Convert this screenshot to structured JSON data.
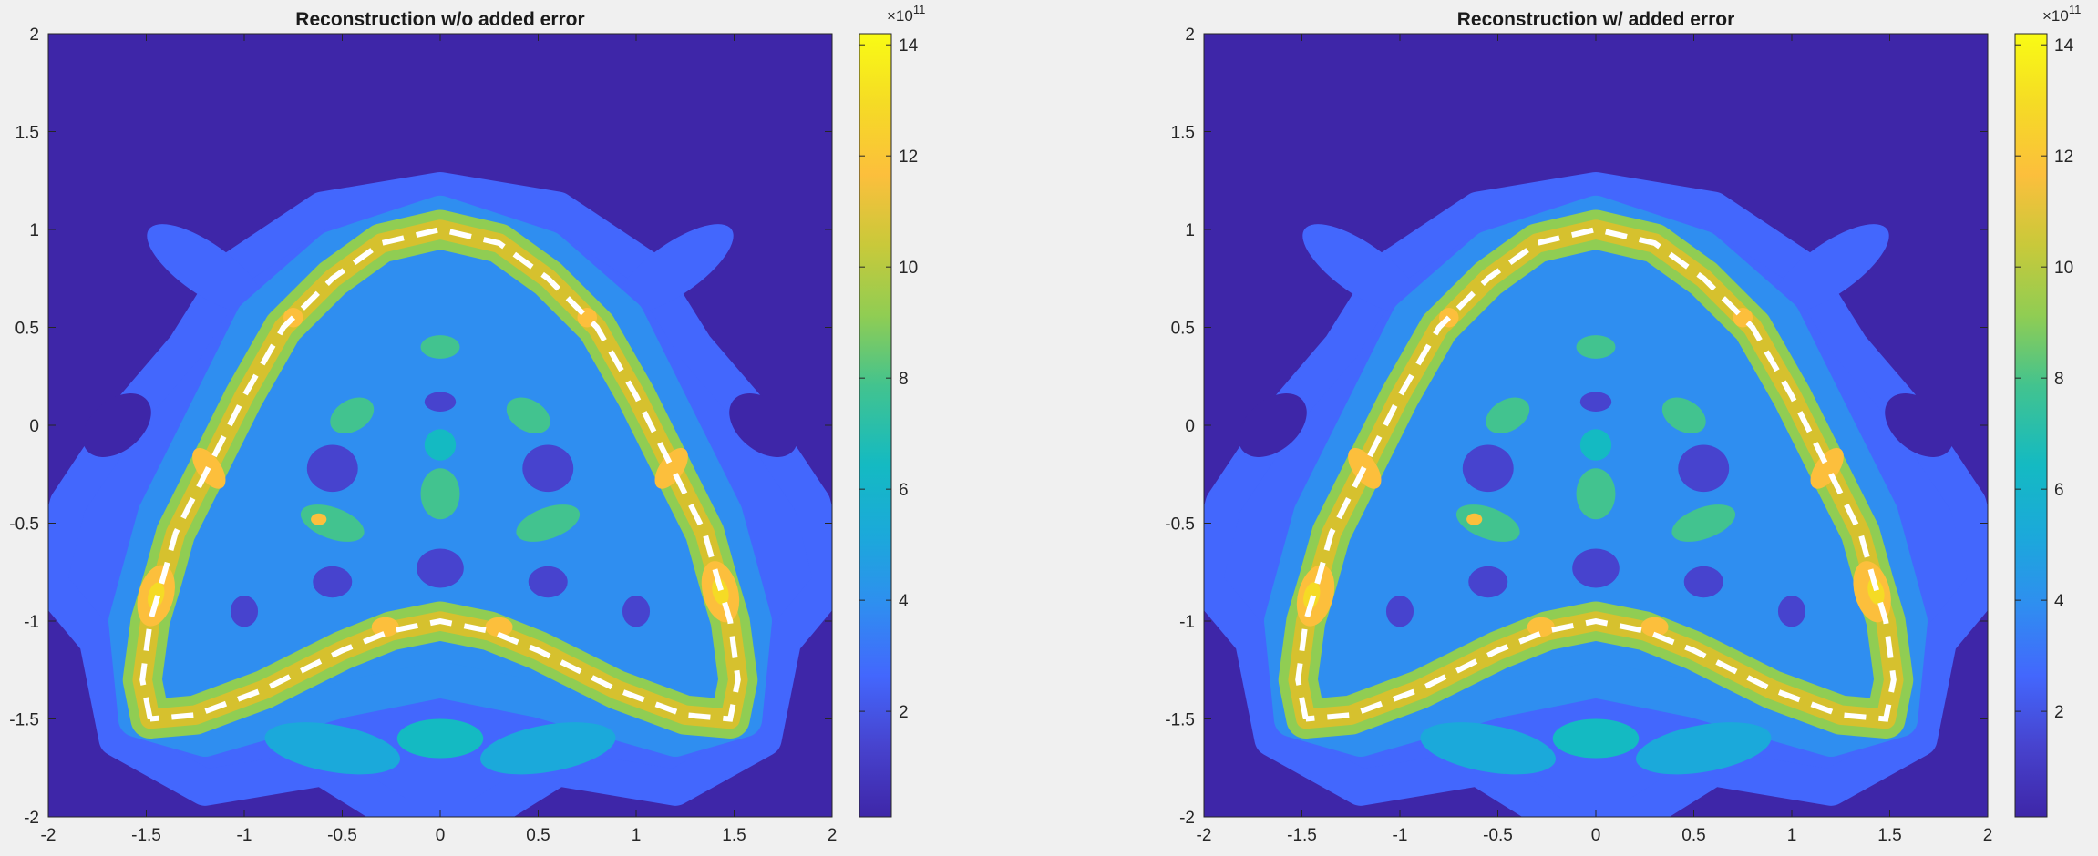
{
  "figure": {
    "background": "#f0f0f0",
    "colormap": "parula",
    "colormap_stops": [
      "#3e26a8",
      "#4743ce",
      "#4367fd",
      "#2f8ef0",
      "#1ba9da",
      "#14bac2",
      "#42c38f",
      "#90cd53",
      "#d6c12e",
      "#fcbf3c",
      "#f5db25",
      "#f9fb14"
    ],
    "curve_color": "#ffffff"
  },
  "chart_data": [
    {
      "type": "heatmap",
      "title": "Reconstruction w/o added error",
      "xlim": [
        -2,
        2
      ],
      "ylim": [
        -2,
        2
      ],
      "x_ticks": [
        -2,
        -1.5,
        -1,
        -0.5,
        0,
        0.5,
        1,
        1.5,
        2
      ],
      "y_ticks": [
        -2,
        -1.5,
        -1,
        -0.5,
        0,
        0.5,
        1,
        1.5,
        2
      ],
      "x_tick_labels": [
        "-2",
        "-1.5",
        "-1",
        "-0.5",
        "0",
        "0.5",
        "1",
        "1.5",
        "2"
      ],
      "y_tick_labels": [
        "-2",
        "-1.5",
        "-1",
        "-0.5",
        "0",
        "0.5",
        "1",
        "1.5",
        "2"
      ],
      "colorbar": {
        "range": [
          0.1,
          14.2
        ],
        "ticks": [
          2,
          4,
          6,
          8,
          10,
          12,
          14
        ],
        "tick_labels": [
          "2",
          "4",
          "6",
          "8",
          "10",
          "12",
          "14"
        ],
        "exponent_base": "×10",
        "exponent_power": "11"
      },
      "overlay_curve": {
        "style": "dashed",
        "points": [
          [
            -1.48,
            -1.5
          ],
          [
            -1.52,
            -1.3
          ],
          [
            -1.48,
            -1.0
          ],
          [
            -1.42,
            -0.8
          ],
          [
            -1.35,
            -0.55
          ],
          [
            -1.2,
            -0.25
          ],
          [
            -1.0,
            0.15
          ],
          [
            -0.8,
            0.5
          ],
          [
            -0.55,
            0.75
          ],
          [
            -0.3,
            0.93
          ],
          [
            0.0,
            1.0
          ],
          [
            0.3,
            0.93
          ],
          [
            0.55,
            0.75
          ],
          [
            0.8,
            0.5
          ],
          [
            1.0,
            0.15
          ],
          [
            1.2,
            -0.25
          ],
          [
            1.35,
            -0.55
          ],
          [
            1.42,
            -0.8
          ],
          [
            1.48,
            -1.0
          ],
          [
            1.52,
            -1.3
          ],
          [
            1.48,
            -1.5
          ],
          [
            1.25,
            -1.48
          ],
          [
            0.9,
            -1.35
          ],
          [
            0.5,
            -1.15
          ],
          [
            0.25,
            -1.05
          ],
          [
            0.0,
            -1.0
          ],
          [
            -0.25,
            -1.05
          ],
          [
            -0.5,
            -1.15
          ],
          [
            -0.9,
            -1.35
          ],
          [
            -1.25,
            -1.48
          ],
          [
            -1.48,
            -1.5
          ]
        ]
      },
      "field_description": "bright band along dashed curve with peaks near (-1.45,-0.85), (1.45,-0.85), (-1.2,-0.2), (1.2,-0.2), (-0.75,0.55), (0.75,0.55), (-0.3,-1.0), (0.3,-1.0)"
    },
    {
      "type": "heatmap",
      "title": "Reconstruction w/ added error",
      "xlim": [
        -2,
        2
      ],
      "ylim": [
        -2,
        2
      ],
      "x_ticks": [
        -2,
        -1.5,
        -1,
        -0.5,
        0,
        0.5,
        1,
        1.5,
        2
      ],
      "y_ticks": [
        -2,
        -1.5,
        -1,
        -0.5,
        0,
        0.5,
        1,
        1.5,
        2
      ],
      "x_tick_labels": [
        "-2",
        "-1.5",
        "-1",
        "-0.5",
        "0",
        "0.5",
        "1",
        "1.5",
        "2"
      ],
      "y_tick_labels": [
        "-2",
        "-1.5",
        "-1",
        "-0.5",
        "0",
        "0.5",
        "1",
        "1.5",
        "2"
      ],
      "colorbar": {
        "range": [
          0.1,
          14.2
        ],
        "ticks": [
          2,
          4,
          6,
          8,
          10,
          12,
          14
        ],
        "tick_labels": [
          "2",
          "4",
          "6",
          "8",
          "10",
          "12",
          "14"
        ],
        "exponent_base": "×10",
        "exponent_power": "11"
      },
      "overlay_curve": {
        "style": "dashed",
        "points": [
          [
            -1.48,
            -1.5
          ],
          [
            -1.52,
            -1.3
          ],
          [
            -1.48,
            -1.0
          ],
          [
            -1.42,
            -0.8
          ],
          [
            -1.35,
            -0.55
          ],
          [
            -1.2,
            -0.25
          ],
          [
            -1.0,
            0.15
          ],
          [
            -0.8,
            0.5
          ],
          [
            -0.55,
            0.75
          ],
          [
            -0.3,
            0.93
          ],
          [
            0.0,
            1.0
          ],
          [
            0.3,
            0.93
          ],
          [
            0.55,
            0.75
          ],
          [
            0.8,
            0.5
          ],
          [
            1.0,
            0.15
          ],
          [
            1.2,
            -0.25
          ],
          [
            1.35,
            -0.55
          ],
          [
            1.42,
            -0.8
          ],
          [
            1.48,
            -1.0
          ],
          [
            1.52,
            -1.3
          ],
          [
            1.48,
            -1.5
          ],
          [
            1.25,
            -1.48
          ],
          [
            0.9,
            -1.35
          ],
          [
            0.5,
            -1.15
          ],
          [
            0.25,
            -1.05
          ],
          [
            0.0,
            -1.0
          ],
          [
            -0.25,
            -1.05
          ],
          [
            -0.5,
            -1.15
          ],
          [
            -0.9,
            -1.35
          ],
          [
            -1.25,
            -1.48
          ],
          [
            -1.48,
            -1.5
          ]
        ]
      },
      "field_description": "same structure as left panel with slight asymmetric perturbations"
    }
  ]
}
